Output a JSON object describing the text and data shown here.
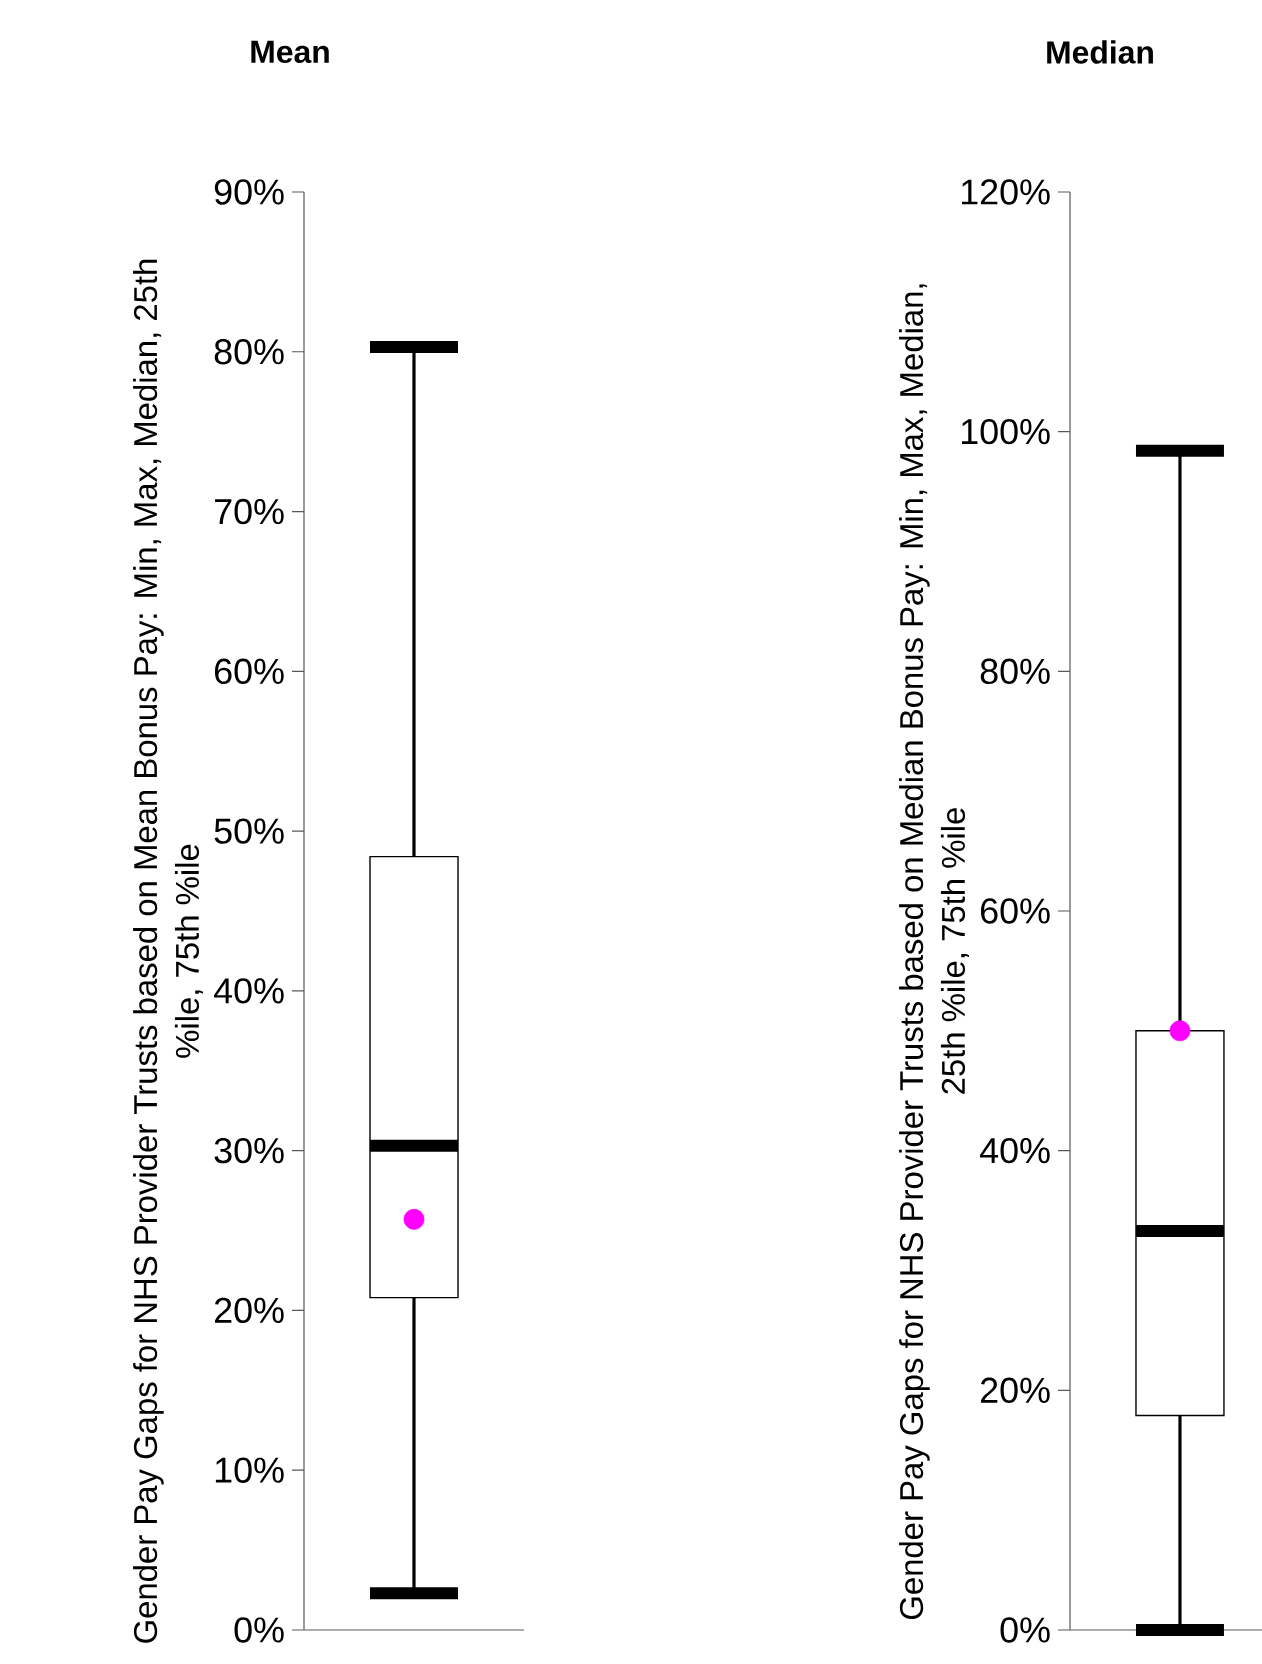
{
  "chart_data": [
    {
      "type": "box",
      "title": "Mean",
      "ylabel": "Gender Pay Gaps for NHS Provider Trusts based on Mean Bonus Pay: Min, Max, Median, 25th %ile, 75th %ile",
      "categories": [
        null
      ],
      "boxes": [
        {
          "low": 2.3,
          "q1": 20.8,
          "median": 30.3,
          "q3": 48.4,
          "high": 80.3
        }
      ],
      "series": [
        {
          "type": "scatter",
          "color": "#ff00ff",
          "values": [
            25.7
          ]
        }
      ],
      "ylim": [
        0,
        90
      ],
      "yticks": [
        {
          "value": 0,
          "label": "0%"
        },
        {
          "value": 10,
          "label": "10%"
        },
        {
          "value": 20,
          "label": "20%"
        },
        {
          "value": 30,
          "label": "30%"
        },
        {
          "value": 40,
          "label": "40%"
        },
        {
          "value": 50,
          "label": "50%"
        },
        {
          "value": 60,
          "label": "60%"
        },
        {
          "value": 70,
          "label": "70%"
        },
        {
          "value": 80,
          "label": "80%"
        },
        {
          "value": 90,
          "label": "90%"
        }
      ],
      "tick_labels": "y"
    },
    {
      "type": "box",
      "title": "Median",
      "ylabel": "Gender Pay Gaps for NHS Provider Trusts based on Median Bonus Pay: Min, Max, Median, 25th %ile, 75th %ile",
      "categories": [
        null
      ],
      "boxes": [
        {
          "low": 0,
          "q1": 17.9,
          "median": 33.3,
          "q3": 50,
          "high": 98.4
        }
      ],
      "series": [
        {
          "type": "scatter",
          "color": "#ff00ff",
          "values": [
            50
          ]
        }
      ],
      "ylim": [
        0,
        120
      ],
      "yticks": [
        {
          "value": 0,
          "label": "0%"
        },
        {
          "value": 20,
          "label": "20%"
        },
        {
          "value": 40,
          "label": "40%"
        },
        {
          "value": 60,
          "label": "60%"
        },
        {
          "value": 80,
          "label": "80%"
        },
        {
          "value": 100,
          "label": "100%"
        },
        {
          "value": 120,
          "label": "120%"
        }
      ],
      "tick_labels": "y"
    }
  ]
}
